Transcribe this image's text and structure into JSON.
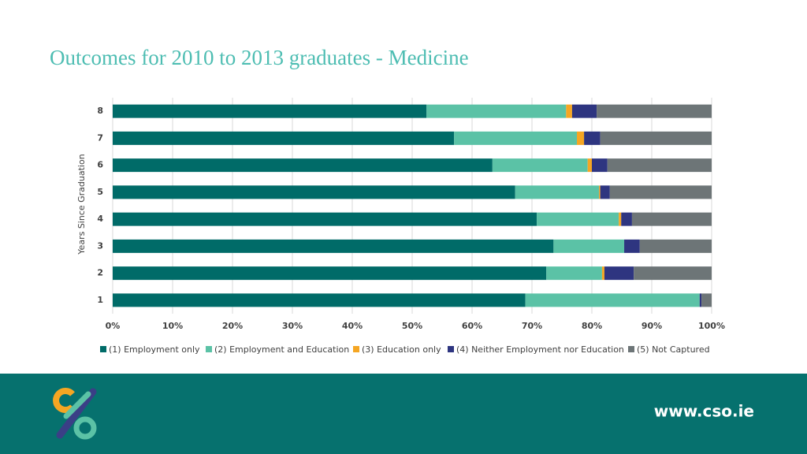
{
  "chart_data": {
    "type": "stacked-barh",
    "title": "Outcomes for 2010 to 2013 graduates - Medicine",
    "ylabel": "Years Since Graduation",
    "categories": [
      "8",
      "7",
      "6",
      "5",
      "4",
      "3",
      "2",
      "1"
    ],
    "series": [
      {
        "name": "(1) Employment only",
        "color": "#006b68",
        "values": [
          52.4,
          57.0,
          63.4,
          67.2,
          70.8,
          73.6,
          72.4,
          68.9
        ]
      },
      {
        "name": "(2) Employment and Education",
        "color": "#5bc2a6",
        "values": [
          23.3,
          20.5,
          15.9,
          14.0,
          13.7,
          11.8,
          9.3,
          29.1
        ]
      },
      {
        "name": "(3) Education only",
        "color": "#f5a623",
        "values": [
          1.0,
          1.2,
          0.7,
          0.2,
          0.4,
          0.0,
          0.4,
          0.0
        ]
      },
      {
        "name": "(4) Neither Employment nor Education",
        "color": "#2e3580",
        "values": [
          4.1,
          2.7,
          2.6,
          1.6,
          1.8,
          2.6,
          4.9,
          0.3
        ]
      },
      {
        "name": "(5) Not Captured",
        "color": "#6d7577",
        "values": [
          19.2,
          18.6,
          17.4,
          17.0,
          13.3,
          12.0,
          13.0,
          1.7
        ]
      }
    ],
    "xlim": [
      0,
      100
    ],
    "xticks": [
      {
        "value": 0,
        "label": "0%"
      },
      {
        "value": 10,
        "label": "10%"
      },
      {
        "value": 20,
        "label": "20%"
      },
      {
        "value": 30,
        "label": "30%"
      },
      {
        "value": 40,
        "label": "40%"
      },
      {
        "value": 50,
        "label": "50%"
      },
      {
        "value": 60,
        "label": "60%"
      },
      {
        "value": 70,
        "label": "70%"
      },
      {
        "value": 80,
        "label": "80%"
      },
      {
        "value": 90,
        "label": "90%"
      },
      {
        "value": 100,
        "label": "100%"
      }
    ],
    "grid": true,
    "legend": "bottom"
  },
  "footer": {
    "url": "www.cso.ie"
  }
}
